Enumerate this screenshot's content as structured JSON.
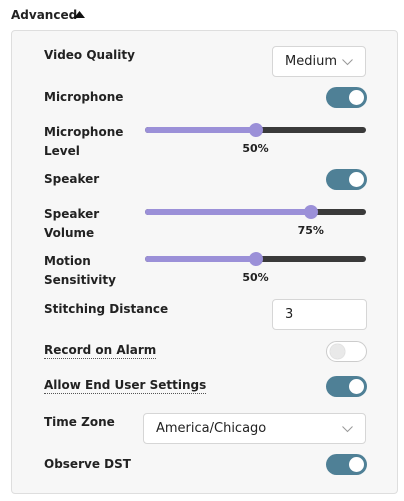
{
  "header": {
    "title": "Advanced"
  },
  "rows": [
    {
      "label": "Video Quality",
      "select": "Medium"
    },
    {
      "label": "Microphone",
      "on": true
    },
    {
      "label": "Microphone Level",
      "slider": {
        "value": 50,
        "label": "50%"
      }
    },
    {
      "label": "Speaker",
      "on": true
    },
    {
      "label": "Speaker Volume",
      "slider": {
        "value": 75,
        "label": "75%"
      }
    },
    {
      "label": "Motion Sensitivity",
      "slider": {
        "value": 50,
        "label": "50%"
      }
    },
    {
      "label": "Stitching Distance",
      "input": "3"
    },
    {
      "label": "Record on Alarm",
      "on": false,
      "underline": true
    },
    {
      "label": "Allow End User Settings",
      "on": true,
      "underline": true
    },
    {
      "label": "Time Zone",
      "select": "America/Chicago"
    },
    {
      "label": "Observe DST",
      "on": true
    }
  ]
}
